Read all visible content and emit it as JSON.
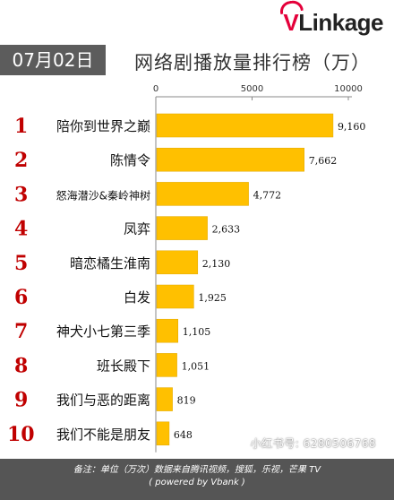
{
  "brand": {
    "v": "V",
    "rest": "Linkage"
  },
  "date_label": "07月02日",
  "watermark": "小红书号: 6280506768",
  "footer": {
    "note_line1": "备注：单位（万次）数据来自腾讯视频，搜狐，乐视，芒果 TV",
    "note_line2": "( powered by Vbank )"
  },
  "colors": {
    "bar": "#ffc000",
    "rank": "#c00000",
    "axis": "#888888"
  },
  "chart_data": {
    "type": "bar",
    "orientation": "horizontal",
    "title": "网络剧播放量排行榜（万）",
    "x_ticks": [
      "0",
      "5000",
      "10000"
    ],
    "xlim": [
      0,
      10000
    ],
    "ranks": [
      "1",
      "2",
      "3",
      "4",
      "5",
      "6",
      "7",
      "8",
      "9",
      "10"
    ],
    "categories": [
      "陪你到世界之巅",
      "陈情令",
      "怒海潜沙&秦岭神树",
      "凤弈",
      "暗恋橘生淮南",
      "白发",
      "神犬小七第三季",
      "班长殿下",
      "我们与恶的距离",
      "我们不能是朋友"
    ],
    "values": [
      9160,
      7662,
      4772,
      2633,
      2130,
      1925,
      1105,
      1051,
      819,
      648
    ],
    "value_labels": [
      "9,160",
      "7,662",
      "4,772",
      "2,633",
      "2,130",
      "1,925",
      "1,105",
      "1,051",
      "819",
      "648"
    ]
  }
}
